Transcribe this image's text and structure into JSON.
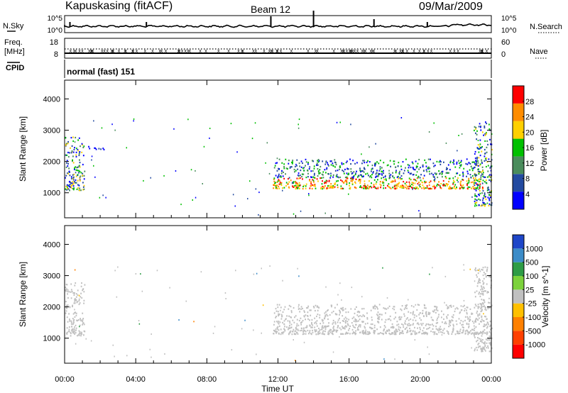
{
  "header": {
    "station": "Kapuskasing (fitACF)",
    "beam": "Beam 12",
    "date": "09/Mar/2009"
  },
  "noise_panel": {
    "left_label": "N.Sky",
    "right_label": "N.Search",
    "left_ticks": [
      "10^5",
      "10^0"
    ],
    "right_ticks": [
      "10^5",
      "10^0"
    ]
  },
  "freq_panel": {
    "left_label_1": "Freq.",
    "left_label_2": "[MHz]",
    "left_ticks": [
      "18",
      "8"
    ],
    "right_label": "Nave",
    "right_ticks": [
      "60",
      "0"
    ]
  },
  "cpid": {
    "label": "CPID",
    "value": "normal (fast) 151"
  },
  "chart_data": [
    {
      "type": "heatmap",
      "title": "",
      "ylabel": "Slant Range [km]",
      "xlabel": "",
      "ylim": [
        200,
        4600
      ],
      "xlim": [
        0,
        24
      ],
      "ytick_labels": [
        "1000",
        "2000",
        "3000",
        "4000"
      ],
      "colorbar": {
        "label": "Power [dB]",
        "tick_labels": [
          "4",
          "8",
          "12",
          "16",
          "20",
          "24",
          "28"
        ],
        "colors": [
          "#0000ff",
          "#234aa0",
          "#4a8c5c",
          "#00c000",
          "#ffd000",
          "#ff8c00",
          "#ff0000"
        ]
      },
      "echo_regions": [
        {
          "t_start": 0.0,
          "t_end": 1.1,
          "range_min": 1100,
          "range_max": 2800,
          "level": "mixed"
        },
        {
          "t_start": 1.1,
          "t_end": 2.2,
          "range_min": 2400,
          "range_max": 2500,
          "level": "low"
        },
        {
          "t_start": 11.7,
          "t_end": 23.5,
          "range_min": 1150,
          "range_max": 2100,
          "level": "high"
        },
        {
          "t_start": 23.0,
          "t_end": 24.0,
          "range_min": 600,
          "range_max": 3300,
          "level": "mixed"
        }
      ]
    },
    {
      "type": "heatmap",
      "title": "",
      "ylabel": "Slant Range [km]",
      "xlabel": "Time UT",
      "ylim": [
        200,
        4600
      ],
      "xlim": [
        0,
        24
      ],
      "ytick_labels": [
        "1000",
        "2000",
        "3000",
        "4000"
      ],
      "xtick_labels": [
        "00:00",
        "04:00",
        "08:00",
        "12:00",
        "16:00",
        "20:00",
        "00:00"
      ],
      "colorbar": {
        "label": "Velocity [m s^-1]",
        "tick_labels": [
          "1000",
          "500",
          "100",
          "25",
          "-25",
          "-100",
          "-500",
          "-1000"
        ],
        "colors": [
          "#1e46c8",
          "#3c8cc8",
          "#2e9c46",
          "#7cd23c",
          "#c0c0c0",
          "#ffc000",
          "#ff8000",
          "#ff4000",
          "#ff0000"
        ]
      },
      "ground_scatter_color": "#c0c0c0",
      "echo_regions": [
        {
          "t_start": 0.0,
          "t_end": 1.1,
          "range_min": 1100,
          "range_max": 2800,
          "level": "ground"
        },
        {
          "t_start": 11.7,
          "t_end": 23.5,
          "range_min": 1150,
          "range_max": 2100,
          "level": "ground"
        },
        {
          "t_start": 23.0,
          "t_end": 24.0,
          "range_min": 600,
          "range_max": 3300,
          "level": "ground"
        }
      ]
    }
  ]
}
